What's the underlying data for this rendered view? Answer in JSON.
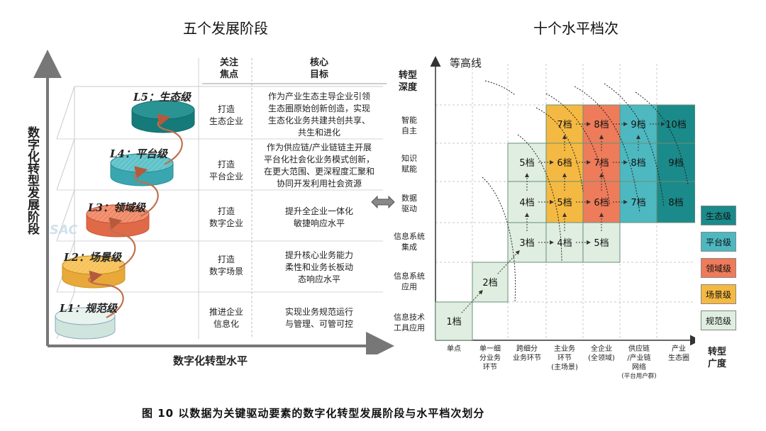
{
  "titles": {
    "left": "五个发展阶段",
    "right": "十个水平档次"
  },
  "caption": "图 10   以数据为关键驱动要素的数字化转型发展阶段与水平档次划分",
  "left": {
    "y_axis_label": "数字化转型发展阶段",
    "x_axis_label": "数字化转型水平",
    "col_headers": {
      "focus": "关注\n焦点",
      "goal": "核心\n目标"
    },
    "watermark": "SAC",
    "levels": [
      {
        "label": "L5：生态级",
        "focus": "打造\n生态企业",
        "goal": "作为产业生态主导企业引领\n生态圈原始创新创造，实现\n生态化业务共建共创共享、\n共生和进化",
        "color": "#1b8a8a"
      },
      {
        "label": "L4：平台级",
        "focus": "打造\n平台企业",
        "goal": "作为供应链/产业链链主开展\n平台化社会化业务模式创新，\n在更大范围、更深程度汇聚和\n协同开发利用社会资源",
        "color": "#4db8c0"
      },
      {
        "label": "L3：领域级",
        "focus": "打造\n数字企业",
        "goal": "提升全企业一体化\n敏捷响应水平",
        "color": "#ee7b5a"
      },
      {
        "label": "L2：场景级",
        "focus": "打造\n数字场景",
        "goal": "提升核心业务能力\n柔性和业务长板动\n态响应水平",
        "color": "#f4b942"
      },
      {
        "label": "L1：规范级",
        "focus": "推进企业\n信息化",
        "goal": "实现业务规范运行\n与管理、可管可控",
        "color": "#dfeee9"
      }
    ]
  },
  "right": {
    "contour_label": "等高线",
    "y_axis_title": "转型\n深度",
    "x_axis_title": "转型\n广度",
    "y_categories": [
      "信息技术\n工具应用",
      "信息系统\n应用",
      "信息系统\n集成",
      "数据\n驱动",
      "知识\n赋能",
      "智能\n自主"
    ],
    "x_categories": [
      {
        "text": "单点"
      },
      {
        "text": "单一细\n分业务\n环节"
      },
      {
        "text": "跨细分\n业务环节"
      },
      {
        "text": "主业务\n环节\n(主场景)"
      },
      {
        "text": "全企业\n(全领域)"
      },
      {
        "text": "供应链\n/产业链\n网络",
        "small": "(平台用户群)"
      },
      {
        "text": "产业\n生态圈"
      }
    ],
    "cells": [
      {
        "label": "1档",
        "tier": "规范级"
      },
      {
        "label": "2档",
        "tier": "规范级"
      },
      {
        "label": "3档",
        "tier": "规范级"
      },
      {
        "label": "4档",
        "tier": "规范级"
      },
      {
        "label": "5档",
        "tier": "规范级"
      },
      {
        "label": "4档",
        "tier": "规范级"
      },
      {
        "label": "5档",
        "tier": "场景级"
      },
      {
        "label": "6档",
        "tier": "领域级"
      },
      {
        "label": "7档",
        "tier": "平台级"
      },
      {
        "label": "8档",
        "tier": "生态级"
      },
      {
        "label": "5档",
        "tier": "规范级"
      },
      {
        "label": "6档",
        "tier": "场景级"
      },
      {
        "label": "7档",
        "tier": "领域级"
      },
      {
        "label": "8档",
        "tier": "平台级"
      },
      {
        "label": "9档",
        "tier": "生态级"
      },
      {
        "label": "7档",
        "tier": "场景级"
      },
      {
        "label": "8档",
        "tier": "领域级"
      },
      {
        "label": "9档",
        "tier": "平台级"
      },
      {
        "label": "10档",
        "tier": "生态级"
      }
    ],
    "legend": [
      {
        "label": "生态级",
        "color": "#1b8a8a"
      },
      {
        "label": "平台级",
        "color": "#4db8c0"
      },
      {
        "label": "领域级",
        "color": "#ee7b5a"
      },
      {
        "label": "场景级",
        "color": "#f4b942"
      },
      {
        "label": "规范级",
        "color": "#dfeee0"
      }
    ]
  }
}
